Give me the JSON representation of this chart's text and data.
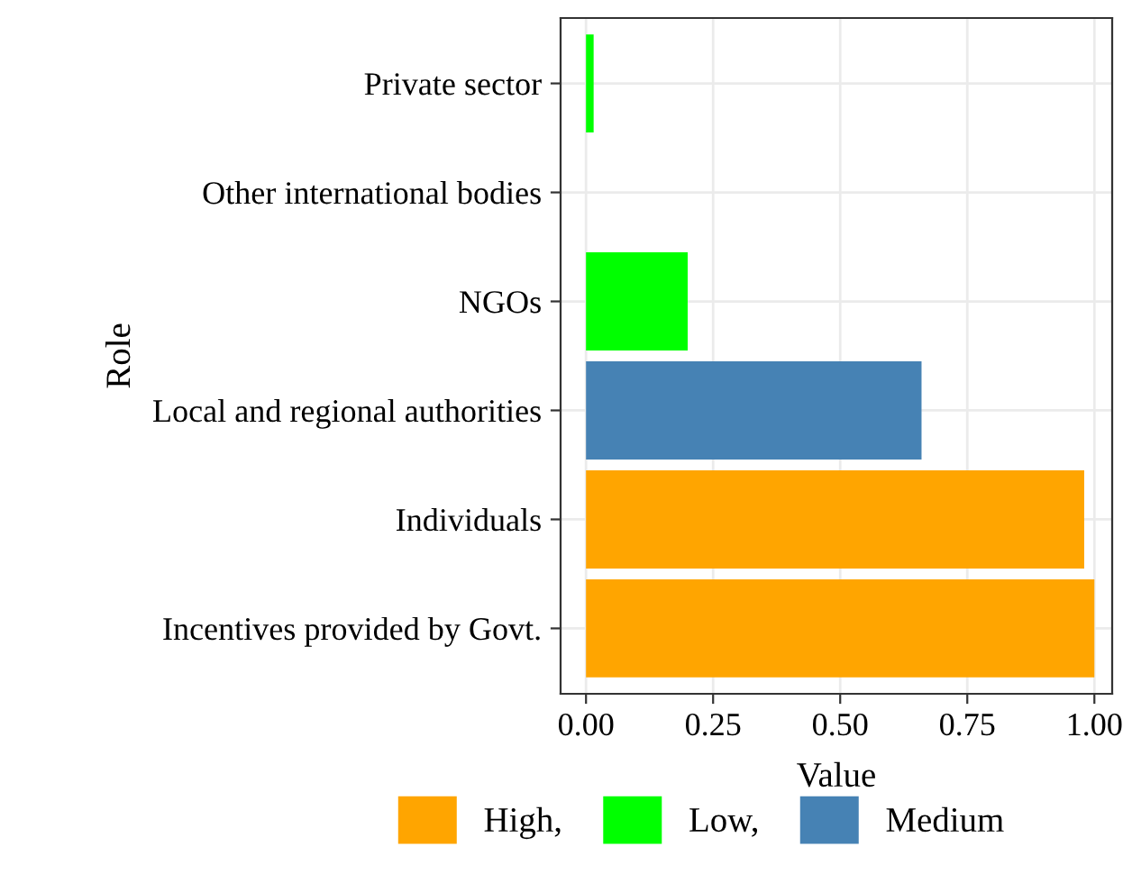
{
  "chart_data": {
    "type": "bar",
    "orientation": "horizontal",
    "xlabel": "Value",
    "ylabel": "Role",
    "categories": [
      "Private sector",
      "Other international bodies",
      "NGOs",
      "Local and regional authorities",
      "Individuals",
      "Incentives provided by Govt."
    ],
    "series": [
      {
        "name": "High,",
        "color": "#ffa500",
        "values": [
          null,
          null,
          null,
          null,
          0.98,
          1.0
        ]
      },
      {
        "name": "Low,",
        "color": "#00ff00",
        "values": [
          0.015,
          0,
          0.2,
          null,
          null,
          null
        ]
      },
      {
        "name": "Medium",
        "color": "#4682b4",
        "values": [
          null,
          null,
          null,
          0.66,
          null,
          null
        ]
      }
    ],
    "xlim": [
      -0.05,
      1.035
    ],
    "xticks": [
      {
        "value": 0,
        "label": "0.00"
      },
      {
        "value": 0.25,
        "label": "0.25"
      },
      {
        "value": 0.5,
        "label": "0.50"
      },
      {
        "value": 0.75,
        "label": "0.75"
      },
      {
        "value": 1,
        "label": "1.00"
      }
    ],
    "grid": true,
    "legend": "bottom"
  }
}
